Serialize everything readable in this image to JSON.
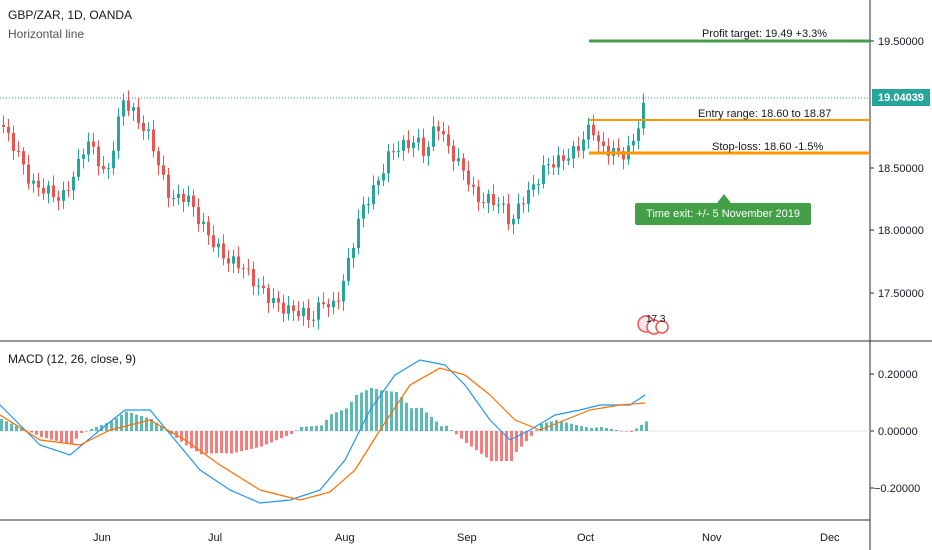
{
  "header": {
    "symbol_line": "GBP/ZAR, 1D, OANDA",
    "drawing_tool": "Horizontal line"
  },
  "macd": {
    "title": "MACD (12, 26, close, 9)"
  },
  "price_axis": {
    "ticks": [
      "19.50000",
      "19.00000",
      "18.50000",
      "18.00000",
      "17.50000"
    ],
    "current_price": "19.04039"
  },
  "macd_axis": {
    "ticks": [
      "0.20000",
      "0.00000",
      "−0.20000"
    ]
  },
  "time_axis": {
    "ticks": [
      "Jun",
      "Jul",
      "Aug",
      "Sep",
      "Oct",
      "Nov",
      "Dec"
    ]
  },
  "annotations": {
    "profit_target": "Profit target: 19.49 +3.3%",
    "entry_range": "Entry range: 18.60 to 18.87",
    "stop_loss": "Stop-loss: 18.60 -1.5%",
    "time_exit": "Time exit: +/- 5 November 2019"
  },
  "events_badge": {
    "text": "17 3"
  },
  "colors": {
    "up": "#26a69a",
    "down": "#ef5350",
    "profit_line": "#43a047",
    "entry_line": "#ff9800",
    "macd_line": "#2196f3",
    "signal_line": "#ff6d00",
    "current_price": "#26a69a"
  },
  "icons": {
    "events": "earnings-dividends-icon"
  }
}
